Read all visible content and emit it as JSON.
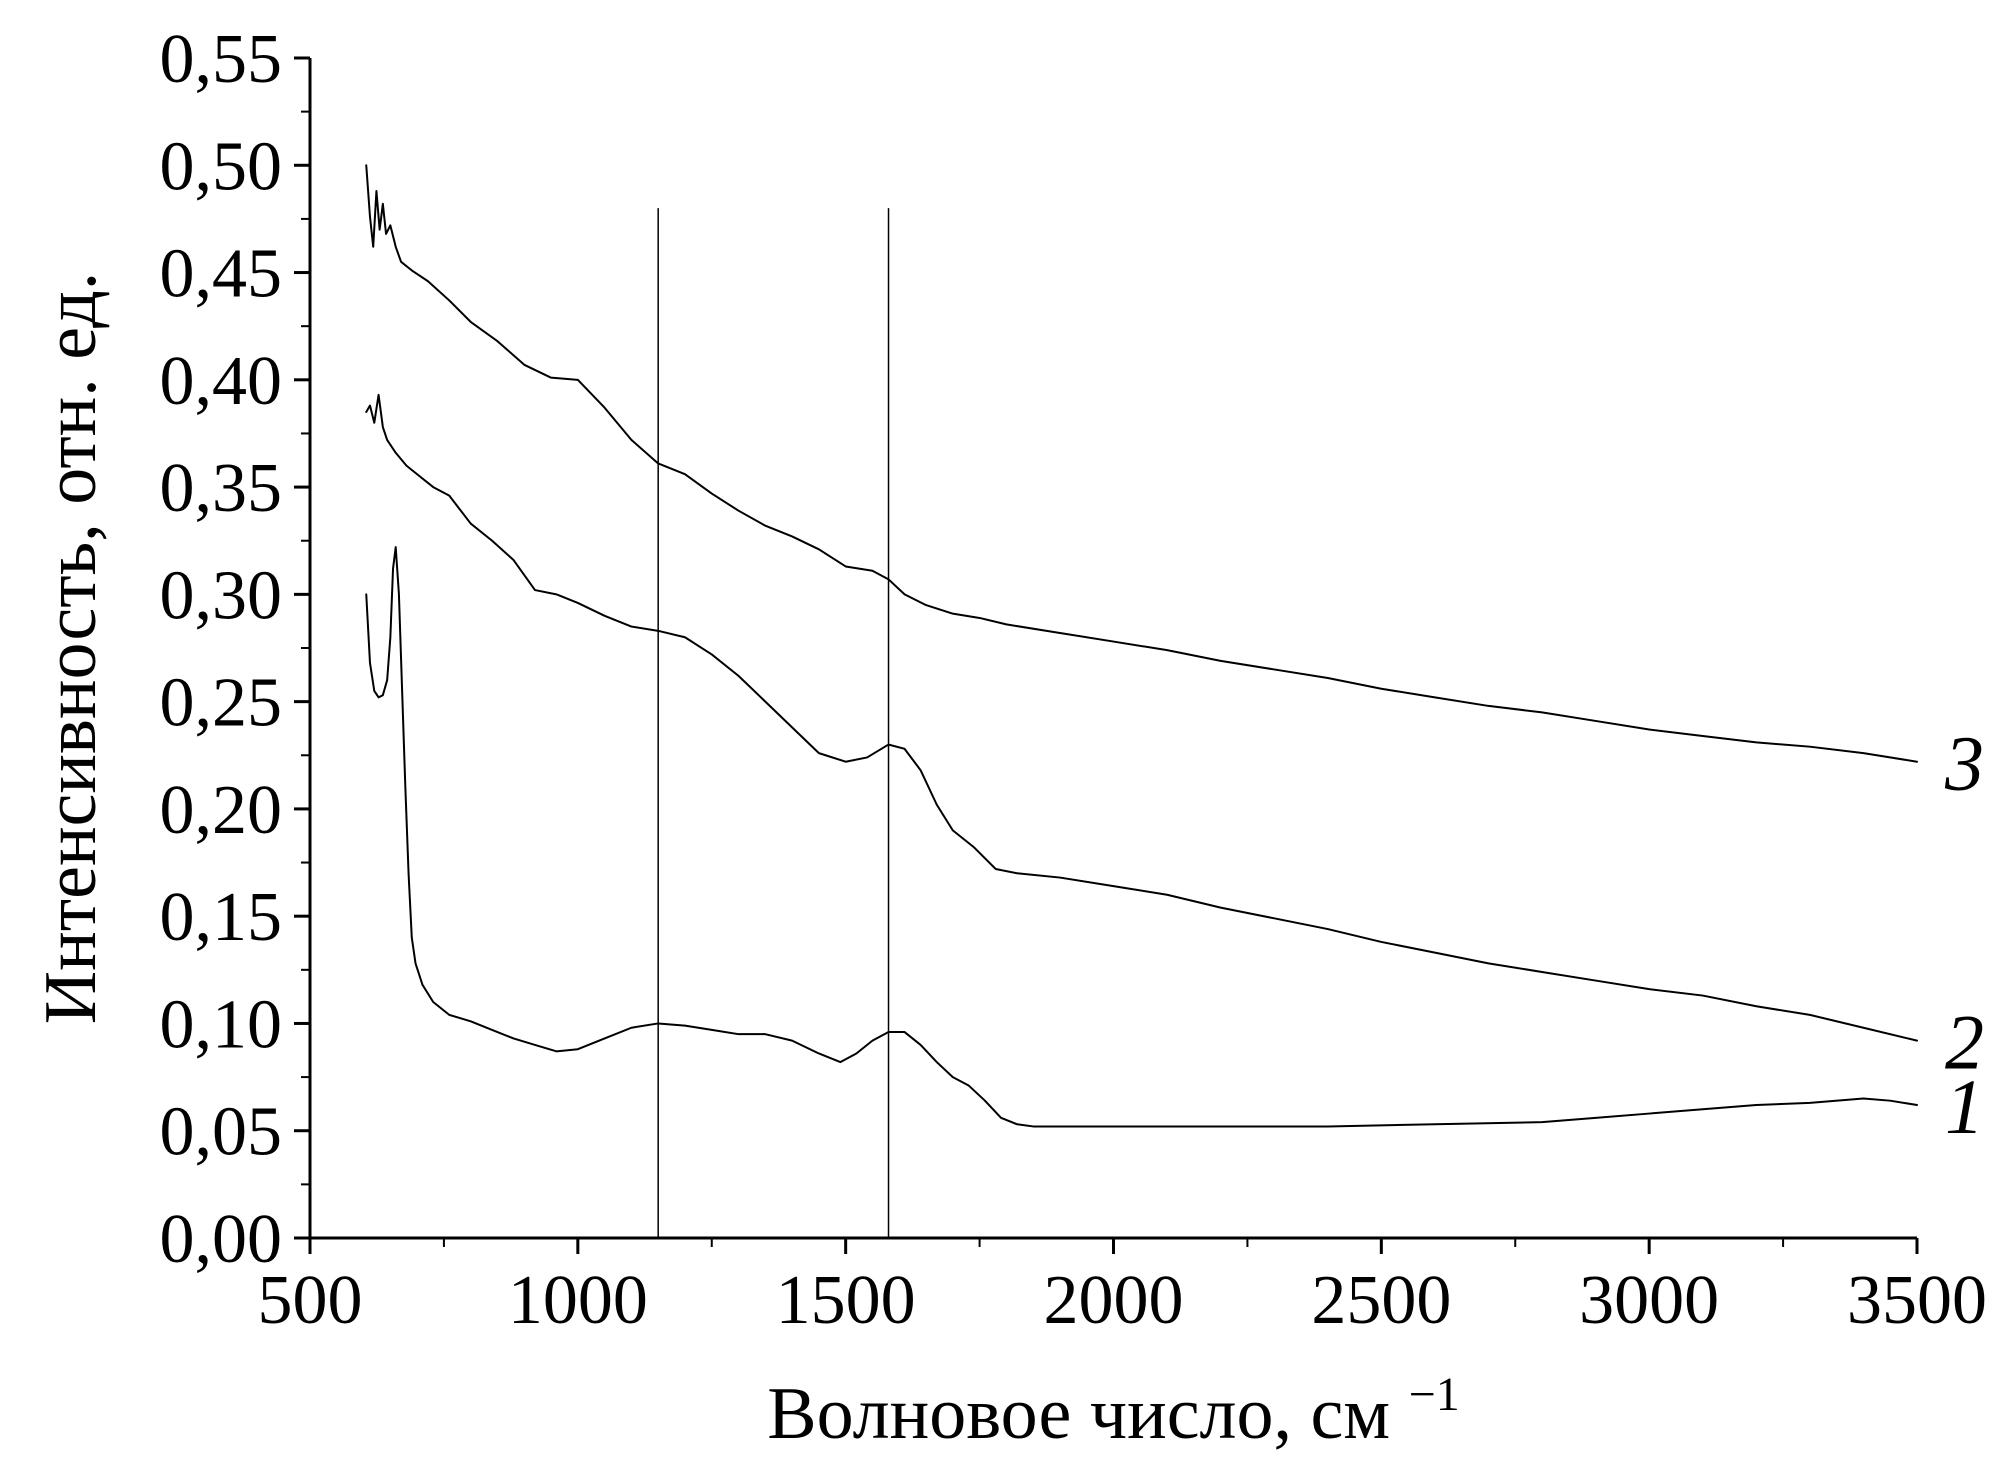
{
  "chart_data": {
    "type": "line",
    "xlabel": "Волновое число, см",
    "xlabel_superscript": "−1",
    "ylabel": "Интенсивность, отн. ед.",
    "xlim": [
      500,
      3500
    ],
    "ylim": [
      0.0,
      0.55
    ],
    "grid": false,
    "legend": "none",
    "x_ticks": [
      "500",
      "1000",
      "1500",
      "2000",
      "2500",
      "3000",
      "3500"
    ],
    "y_ticks": [
      "0,00",
      "0,05",
      "0,10",
      "0,15",
      "0,20",
      "0,25",
      "0,30",
      "0,35",
      "0,40",
      "0,45",
      "0,50",
      "0,55"
    ],
    "vertical_lines": [
      1150,
      1580
    ],
    "series": [
      {
        "label": "1",
        "color": "#000000",
        "points": [
          [
            605,
            0.3
          ],
          [
            612,
            0.268
          ],
          [
            620,
            0.255
          ],
          [
            628,
            0.252
          ],
          [
            636,
            0.253
          ],
          [
            644,
            0.26
          ],
          [
            650,
            0.28
          ],
          [
            655,
            0.312
          ],
          [
            660,
            0.322
          ],
          [
            666,
            0.3
          ],
          [
            672,
            0.255
          ],
          [
            678,
            0.21
          ],
          [
            684,
            0.17
          ],
          [
            690,
            0.14
          ],
          [
            697,
            0.128
          ],
          [
            710,
            0.118
          ],
          [
            730,
            0.11
          ],
          [
            760,
            0.104
          ],
          [
            800,
            0.101
          ],
          [
            840,
            0.097
          ],
          [
            880,
            0.093
          ],
          [
            920,
            0.09
          ],
          [
            960,
            0.087
          ],
          [
            1000,
            0.088
          ],
          [
            1050,
            0.093
          ],
          [
            1100,
            0.098
          ],
          [
            1150,
            0.1
          ],
          [
            1200,
            0.099
          ],
          [
            1250,
            0.097
          ],
          [
            1300,
            0.095
          ],
          [
            1350,
            0.095
          ],
          [
            1400,
            0.092
          ],
          [
            1450,
            0.086
          ],
          [
            1490,
            0.082
          ],
          [
            1520,
            0.086
          ],
          [
            1550,
            0.092
          ],
          [
            1580,
            0.096
          ],
          [
            1610,
            0.096
          ],
          [
            1640,
            0.09
          ],
          [
            1670,
            0.082
          ],
          [
            1700,
            0.075
          ],
          [
            1730,
            0.071
          ],
          [
            1760,
            0.064
          ],
          [
            1790,
            0.056
          ],
          [
            1820,
            0.053
          ],
          [
            1850,
            0.052
          ],
          [
            2000,
            0.052
          ],
          [
            2200,
            0.052
          ],
          [
            2400,
            0.052
          ],
          [
            2600,
            0.053
          ],
          [
            2800,
            0.054
          ],
          [
            2900,
            0.056
          ],
          [
            3000,
            0.058
          ],
          [
            3100,
            0.06
          ],
          [
            3200,
            0.062
          ],
          [
            3300,
            0.063
          ],
          [
            3400,
            0.065
          ],
          [
            3450,
            0.064
          ],
          [
            3500,
            0.062
          ]
        ]
      },
      {
        "label": "2",
        "color": "#000000",
        "points": [
          [
            605,
            0.385
          ],
          [
            612,
            0.388
          ],
          [
            620,
            0.38
          ],
          [
            628,
            0.393
          ],
          [
            636,
            0.378
          ],
          [
            644,
            0.372
          ],
          [
            660,
            0.366
          ],
          [
            680,
            0.36
          ],
          [
            700,
            0.356
          ],
          [
            730,
            0.35
          ],
          [
            760,
            0.346
          ],
          [
            800,
            0.333
          ],
          [
            840,
            0.325
          ],
          [
            880,
            0.316
          ],
          [
            920,
            0.302
          ],
          [
            960,
            0.3
          ],
          [
            1000,
            0.296
          ],
          [
            1050,
            0.29
          ],
          [
            1100,
            0.285
          ],
          [
            1150,
            0.283
          ],
          [
            1200,
            0.28
          ],
          [
            1250,
            0.272
          ],
          [
            1300,
            0.262
          ],
          [
            1350,
            0.25
          ],
          [
            1400,
            0.238
          ],
          [
            1450,
            0.226
          ],
          [
            1500,
            0.222
          ],
          [
            1540,
            0.224
          ],
          [
            1580,
            0.23
          ],
          [
            1610,
            0.228
          ],
          [
            1640,
            0.218
          ],
          [
            1670,
            0.202
          ],
          [
            1700,
            0.19
          ],
          [
            1740,
            0.182
          ],
          [
            1780,
            0.172
          ],
          [
            1820,
            0.17
          ],
          [
            1900,
            0.168
          ],
          [
            2000,
            0.164
          ],
          [
            2100,
            0.16
          ],
          [
            2200,
            0.154
          ],
          [
            2300,
            0.149
          ],
          [
            2400,
            0.144
          ],
          [
            2500,
            0.138
          ],
          [
            2600,
            0.133
          ],
          [
            2700,
            0.128
          ],
          [
            2800,
            0.124
          ],
          [
            2900,
            0.12
          ],
          [
            3000,
            0.116
          ],
          [
            3100,
            0.113
          ],
          [
            3200,
            0.108
          ],
          [
            3300,
            0.104
          ],
          [
            3400,
            0.098
          ],
          [
            3500,
            0.092
          ]
        ]
      },
      {
        "label": "3",
        "color": "#000000",
        "points": [
          [
            605,
            0.5
          ],
          [
            612,
            0.476
          ],
          [
            618,
            0.462
          ],
          [
            624,
            0.488
          ],
          [
            630,
            0.47
          ],
          [
            636,
            0.482
          ],
          [
            642,
            0.468
          ],
          [
            650,
            0.472
          ],
          [
            660,
            0.462
          ],
          [
            670,
            0.455
          ],
          [
            690,
            0.451
          ],
          [
            720,
            0.446
          ],
          [
            760,
            0.437
          ],
          [
            800,
            0.427
          ],
          [
            850,
            0.418
          ],
          [
            900,
            0.407
          ],
          [
            950,
            0.401
          ],
          [
            1000,
            0.4
          ],
          [
            1050,
            0.387
          ],
          [
            1100,
            0.372
          ],
          [
            1150,
            0.361
          ],
          [
            1200,
            0.356
          ],
          [
            1250,
            0.347
          ],
          [
            1300,
            0.339
          ],
          [
            1350,
            0.332
          ],
          [
            1400,
            0.327
          ],
          [
            1450,
            0.321
          ],
          [
            1500,
            0.313
          ],
          [
            1550,
            0.311
          ],
          [
            1580,
            0.307
          ],
          [
            1610,
            0.3
          ],
          [
            1650,
            0.295
          ],
          [
            1700,
            0.291
          ],
          [
            1750,
            0.289
          ],
          [
            1800,
            0.286
          ],
          [
            1900,
            0.282
          ],
          [
            2000,
            0.278
          ],
          [
            2100,
            0.274
          ],
          [
            2200,
            0.269
          ],
          [
            2300,
            0.265
          ],
          [
            2400,
            0.261
          ],
          [
            2500,
            0.256
          ],
          [
            2600,
            0.252
          ],
          [
            2700,
            0.248
          ],
          [
            2800,
            0.245
          ],
          [
            2900,
            0.241
          ],
          [
            3000,
            0.237
          ],
          [
            3100,
            0.234
          ],
          [
            3200,
            0.231
          ],
          [
            3300,
            0.229
          ],
          [
            3400,
            0.226
          ],
          [
            3500,
            0.222
          ]
        ]
      }
    ]
  }
}
